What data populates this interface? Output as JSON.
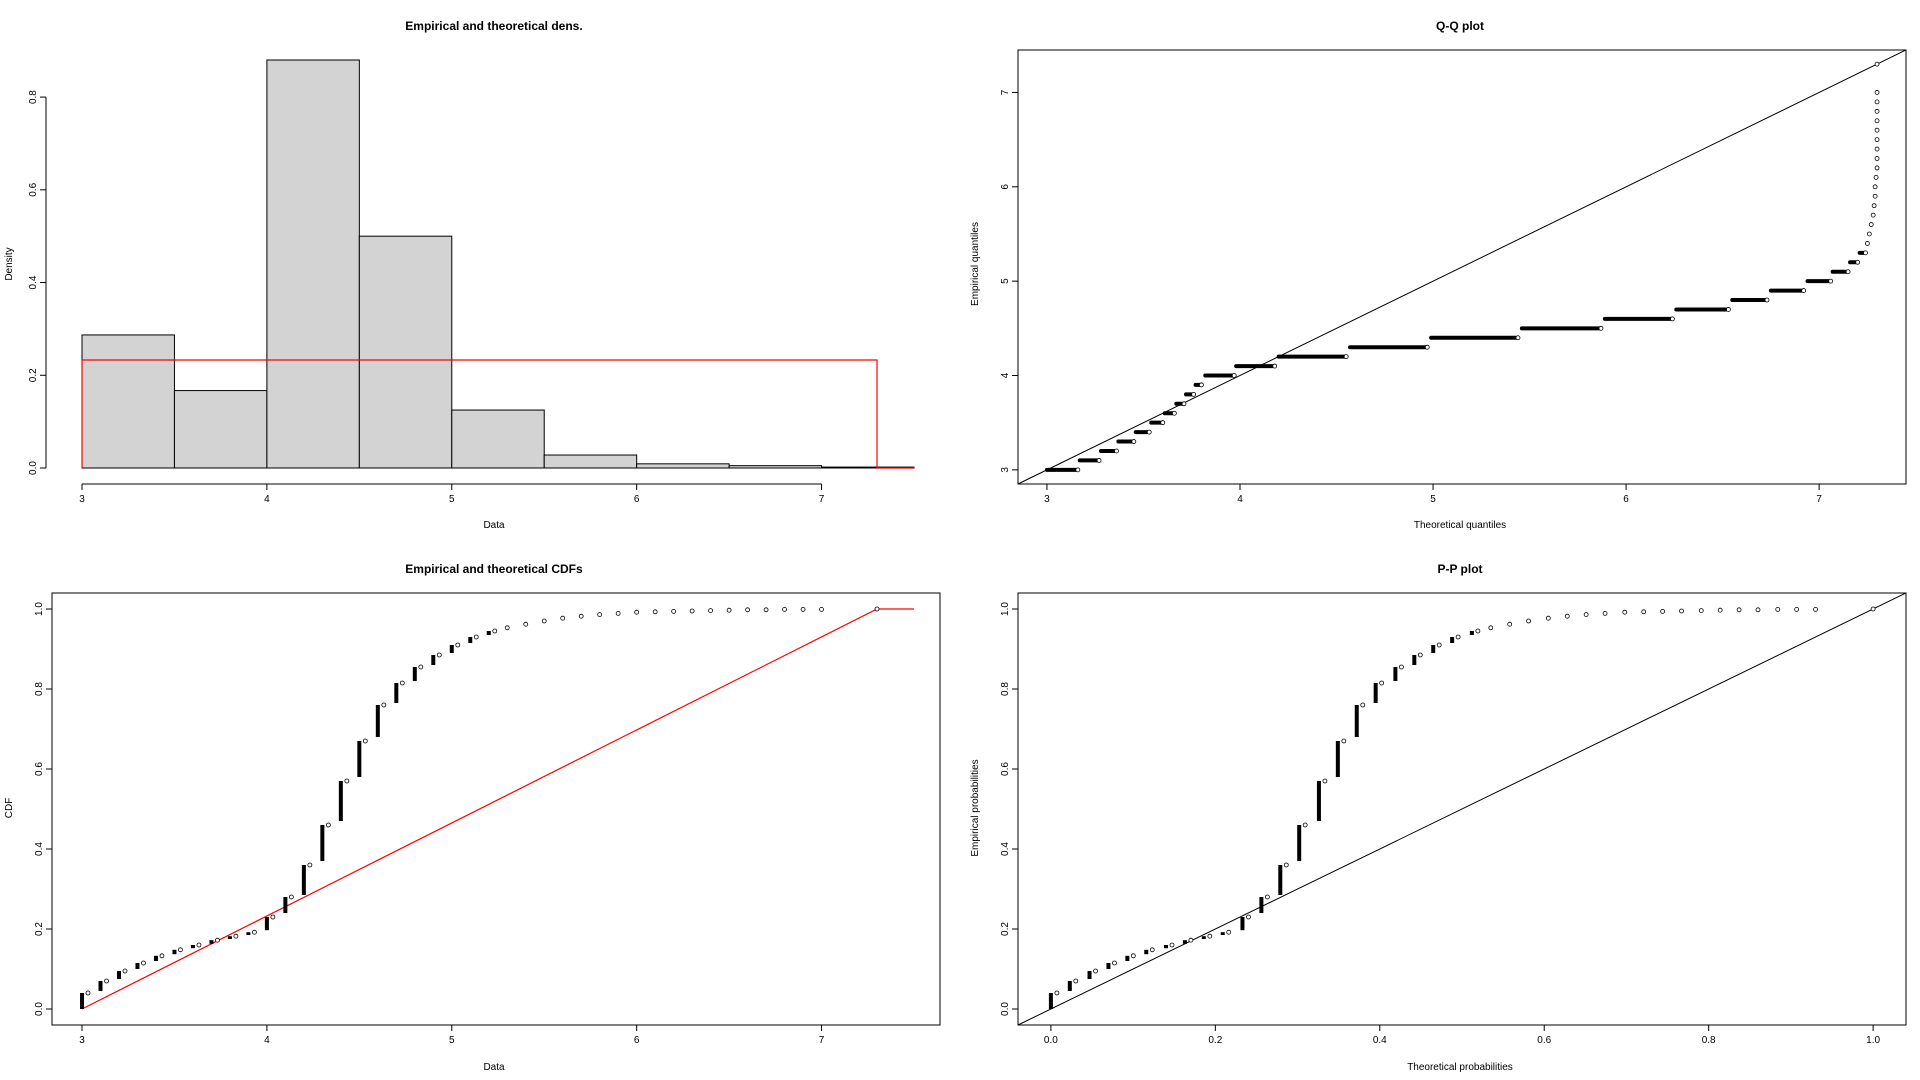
{
  "colors": {
    "bar_fill": "#d3d3d3",
    "theoretical": "#ff0000",
    "points": "#000000",
    "axis": "#000000"
  },
  "chart_data": [
    {
      "type": "bar",
      "id": "density",
      "title": "Empirical and theoretical dens.",
      "xlabel": "Data",
      "ylabel": "Density",
      "xlim": [
        3,
        7.5
      ],
      "ylim": [
        0,
        0.88
      ],
      "xticks": [
        "3",
        "4",
        "5",
        "6",
        "7"
      ],
      "yticks": [
        "0.0",
        "0.2",
        "0.4",
        "0.6",
        "0.8"
      ],
      "bins": [
        {
          "x0": 3.0,
          "x1": 3.5,
          "value": 0.287
        },
        {
          "x0": 3.5,
          "x1": 4.0,
          "value": 0.167
        },
        {
          "x0": 4.0,
          "x1": 4.5,
          "value": 0.88
        },
        {
          "x0": 4.5,
          "x1": 5.0,
          "value": 0.5
        },
        {
          "x0": 5.0,
          "x1": 5.5,
          "value": 0.125
        },
        {
          "x0": 5.5,
          "x1": 6.0,
          "value": 0.028
        },
        {
          "x0": 6.0,
          "x1": 6.5,
          "value": 0.009
        },
        {
          "x0": 6.5,
          "x1": 7.0,
          "value": 0.005
        },
        {
          "x0": 7.0,
          "x1": 7.5,
          "value": 0.002
        }
      ],
      "theoretical_density": {
        "x": [
          3.0,
          3.0,
          7.3,
          7.3,
          7.5
        ],
        "y": [
          0.0,
          0.233,
          0.233,
          0.0,
          0.0
        ]
      }
    },
    {
      "type": "scatter",
      "id": "qq",
      "title": "Q-Q plot",
      "xlabel": "Theoretical quantiles",
      "ylabel": "Empirical quantiles",
      "xlim": [
        2.85,
        7.45
      ],
      "ylim": [
        2.85,
        7.45
      ],
      "xticks": [
        "3",
        "4",
        "5",
        "6",
        "7"
      ],
      "yticks": [
        "3",
        "4",
        "5",
        "6",
        "7"
      ],
      "levels": [
        {
          "y": 3.0,
          "x0": 3.0,
          "x1": 3.16
        },
        {
          "y": 3.1,
          "x0": 3.17,
          "x1": 3.27
        },
        {
          "y": 3.2,
          "x0": 3.28,
          "x1": 3.36
        },
        {
          "y": 3.3,
          "x0": 3.37,
          "x1": 3.45
        },
        {
          "y": 3.4,
          "x0": 3.46,
          "x1": 3.53
        },
        {
          "y": 3.5,
          "x0": 3.54,
          "x1": 3.6
        },
        {
          "y": 3.6,
          "x0": 3.61,
          "x1": 3.66
        },
        {
          "y": 3.7,
          "x0": 3.67,
          "x1": 3.71
        },
        {
          "y": 3.8,
          "x0": 3.72,
          "x1": 3.76
        },
        {
          "y": 3.9,
          "x0": 3.77,
          "x1": 3.8
        },
        {
          "y": 4.0,
          "x0": 3.82,
          "x1": 3.97
        },
        {
          "y": 4.1,
          "x0": 3.98,
          "x1": 4.18
        },
        {
          "y": 4.2,
          "x0": 4.2,
          "x1": 4.55
        },
        {
          "y": 4.3,
          "x0": 4.57,
          "x1": 4.97
        },
        {
          "y": 4.4,
          "x0": 4.99,
          "x1": 5.44
        },
        {
          "y": 4.5,
          "x0": 5.46,
          "x1": 5.87
        },
        {
          "y": 4.6,
          "x0": 5.89,
          "x1": 6.24
        },
        {
          "y": 4.7,
          "x0": 6.26,
          "x1": 6.53
        },
        {
          "y": 4.8,
          "x0": 6.55,
          "x1": 6.73
        },
        {
          "y": 4.9,
          "x0": 6.75,
          "x1": 6.92
        },
        {
          "y": 5.0,
          "x0": 6.94,
          "x1": 7.06
        },
        {
          "y": 5.1,
          "x0": 7.07,
          "x1": 7.15
        },
        {
          "y": 5.2,
          "x0": 7.16,
          "x1": 7.2
        },
        {
          "y": 5.3,
          "x0": 7.21,
          "x1": 7.24
        }
      ],
      "tail_points": [
        [
          7.25,
          5.4
        ],
        [
          7.26,
          5.5
        ],
        [
          7.27,
          5.6
        ],
        [
          7.28,
          5.7
        ],
        [
          7.285,
          5.8
        ],
        [
          7.29,
          5.9
        ],
        [
          7.29,
          6.0
        ],
        [
          7.295,
          6.1
        ],
        [
          7.3,
          6.2
        ],
        [
          7.3,
          6.3
        ],
        [
          7.3,
          6.4
        ],
        [
          7.3,
          6.5
        ],
        [
          7.3,
          6.6
        ],
        [
          7.3,
          6.7
        ],
        [
          7.3,
          6.8
        ],
        [
          7.3,
          6.9
        ],
        [
          7.3,
          7.0
        ],
        [
          7.3,
          7.3
        ]
      ],
      "reference_line": {
        "x": [
          2.85,
          7.45
        ],
        "y": [
          2.85,
          7.45
        ]
      }
    },
    {
      "type": "line",
      "id": "cdf",
      "title": "Empirical and theoretical CDFs",
      "xlabel": "Data",
      "ylabel": "CDF",
      "xlim": [
        3,
        7.5
      ],
      "ylim": [
        0,
        1
      ],
      "xticks": [
        "3",
        "4",
        "5",
        "6",
        "7"
      ],
      "yticks": [
        "0.0",
        "0.2",
        "0.4",
        "0.6",
        "0.8",
        "1.0"
      ],
      "steps": [
        {
          "x": 3.0,
          "y0": 0.0,
          "y1": 0.04
        },
        {
          "x": 3.1,
          "y0": 0.045,
          "y1": 0.07
        },
        {
          "x": 3.2,
          "y0": 0.075,
          "y1": 0.095
        },
        {
          "x": 3.3,
          "y0": 0.1,
          "y1": 0.115
        },
        {
          "x": 3.4,
          "y0": 0.12,
          "y1": 0.133
        },
        {
          "x": 3.5,
          "y0": 0.137,
          "y1": 0.148
        },
        {
          "x": 3.6,
          "y0": 0.152,
          "y1": 0.16
        },
        {
          "x": 3.7,
          "y0": 0.163,
          "y1": 0.172
        },
        {
          "x": 3.8,
          "y0": 0.175,
          "y1": 0.182
        },
        {
          "x": 3.9,
          "y0": 0.185,
          "y1": 0.192
        },
        {
          "x": 4.0,
          "y0": 0.197,
          "y1": 0.23
        },
        {
          "x": 4.1,
          "y0": 0.24,
          "y1": 0.28
        },
        {
          "x": 4.2,
          "y0": 0.285,
          "y1": 0.36
        },
        {
          "x": 4.3,
          "y0": 0.37,
          "y1": 0.46
        },
        {
          "x": 4.4,
          "y0": 0.47,
          "y1": 0.57
        },
        {
          "x": 4.5,
          "y0": 0.58,
          "y1": 0.67
        },
        {
          "x": 4.6,
          "y0": 0.68,
          "y1": 0.76
        },
        {
          "x": 4.7,
          "y0": 0.765,
          "y1": 0.815
        },
        {
          "x": 4.8,
          "y0": 0.82,
          "y1": 0.855
        },
        {
          "x": 4.9,
          "y0": 0.86,
          "y1": 0.885
        },
        {
          "x": 5.0,
          "y0": 0.89,
          "y1": 0.91
        },
        {
          "x": 5.1,
          "y0": 0.915,
          "y1": 0.93
        },
        {
          "x": 5.2,
          "y0": 0.935,
          "y1": 0.945
        }
      ],
      "tail_points": [
        [
          5.3,
          0.953
        ],
        [
          5.4,
          0.962
        ],
        [
          5.5,
          0.97
        ],
        [
          5.6,
          0.977
        ],
        [
          5.7,
          0.982
        ],
        [
          5.8,
          0.986
        ],
        [
          5.9,
          0.989
        ],
        [
          6.0,
          0.992
        ],
        [
          6.1,
          0.993
        ],
        [
          6.2,
          0.994
        ],
        [
          6.3,
          0.995
        ],
        [
          6.4,
          0.996
        ],
        [
          6.5,
          0.997
        ],
        [
          6.6,
          0.998
        ],
        [
          6.7,
          0.998
        ],
        [
          6.8,
          0.999
        ],
        [
          6.9,
          0.999
        ],
        [
          7.0,
          0.999
        ],
        [
          7.3,
          1.0
        ]
      ],
      "theoretical_cdf": {
        "x": [
          3.0,
          7.3,
          7.5
        ],
        "y": [
          0.0,
          1.0,
          1.0
        ]
      }
    },
    {
      "type": "scatter",
      "id": "pp",
      "title": "P-P plot",
      "xlabel": "Theoretical probabilities",
      "ylabel": "Empirical probabilities",
      "xlim": [
        -0.04,
        1.04
      ],
      "ylim": [
        -0.04,
        1.04
      ],
      "xticks": [
        "0.0",
        "0.2",
        "0.4",
        "0.6",
        "0.8",
        "1.0"
      ],
      "yticks": [
        "0.0",
        "0.2",
        "0.4",
        "0.6",
        "0.8",
        "1.0"
      ],
      "steps": [
        {
          "x": 0.0,
          "y0": 0.0,
          "y1": 0.04
        },
        {
          "x": 0.023,
          "y0": 0.045,
          "y1": 0.07
        },
        {
          "x": 0.047,
          "y0": 0.075,
          "y1": 0.095
        },
        {
          "x": 0.07,
          "y0": 0.1,
          "y1": 0.115
        },
        {
          "x": 0.093,
          "y0": 0.12,
          "y1": 0.133
        },
        {
          "x": 0.116,
          "y0": 0.137,
          "y1": 0.148
        },
        {
          "x": 0.14,
          "y0": 0.152,
          "y1": 0.16
        },
        {
          "x": 0.163,
          "y0": 0.163,
          "y1": 0.172
        },
        {
          "x": 0.186,
          "y0": 0.175,
          "y1": 0.182
        },
        {
          "x": 0.209,
          "y0": 0.185,
          "y1": 0.192
        },
        {
          "x": 0.233,
          "y0": 0.197,
          "y1": 0.23
        },
        {
          "x": 0.256,
          "y0": 0.24,
          "y1": 0.28
        },
        {
          "x": 0.279,
          "y0": 0.285,
          "y1": 0.36
        },
        {
          "x": 0.302,
          "y0": 0.37,
          "y1": 0.46
        },
        {
          "x": 0.326,
          "y0": 0.47,
          "y1": 0.57
        },
        {
          "x": 0.349,
          "y0": 0.58,
          "y1": 0.67
        },
        {
          "x": 0.372,
          "y0": 0.68,
          "y1": 0.76
        },
        {
          "x": 0.395,
          "y0": 0.765,
          "y1": 0.815
        },
        {
          "x": 0.419,
          "y0": 0.82,
          "y1": 0.855
        },
        {
          "x": 0.442,
          "y0": 0.86,
          "y1": 0.885
        },
        {
          "x": 0.465,
          "y0": 0.89,
          "y1": 0.91
        },
        {
          "x": 0.488,
          "y0": 0.915,
          "y1": 0.93
        },
        {
          "x": 0.512,
          "y0": 0.935,
          "y1": 0.945
        }
      ],
      "tail_points": [
        [
          0.535,
          0.953
        ],
        [
          0.558,
          0.962
        ],
        [
          0.581,
          0.97
        ],
        [
          0.605,
          0.977
        ],
        [
          0.628,
          0.982
        ],
        [
          0.651,
          0.986
        ],
        [
          0.674,
          0.989
        ],
        [
          0.698,
          0.992
        ],
        [
          0.721,
          0.993
        ],
        [
          0.744,
          0.994
        ],
        [
          0.767,
          0.995
        ],
        [
          0.791,
          0.996
        ],
        [
          0.814,
          0.997
        ],
        [
          0.837,
          0.998
        ],
        [
          0.86,
          0.998
        ],
        [
          0.884,
          0.999
        ],
        [
          0.907,
          0.999
        ],
        [
          0.93,
          0.999
        ],
        [
          1.0,
          1.0
        ]
      ],
      "reference_line": {
        "x": [
          -0.04,
          1.04
        ],
        "y": [
          -0.04,
          1.04
        ]
      }
    }
  ]
}
